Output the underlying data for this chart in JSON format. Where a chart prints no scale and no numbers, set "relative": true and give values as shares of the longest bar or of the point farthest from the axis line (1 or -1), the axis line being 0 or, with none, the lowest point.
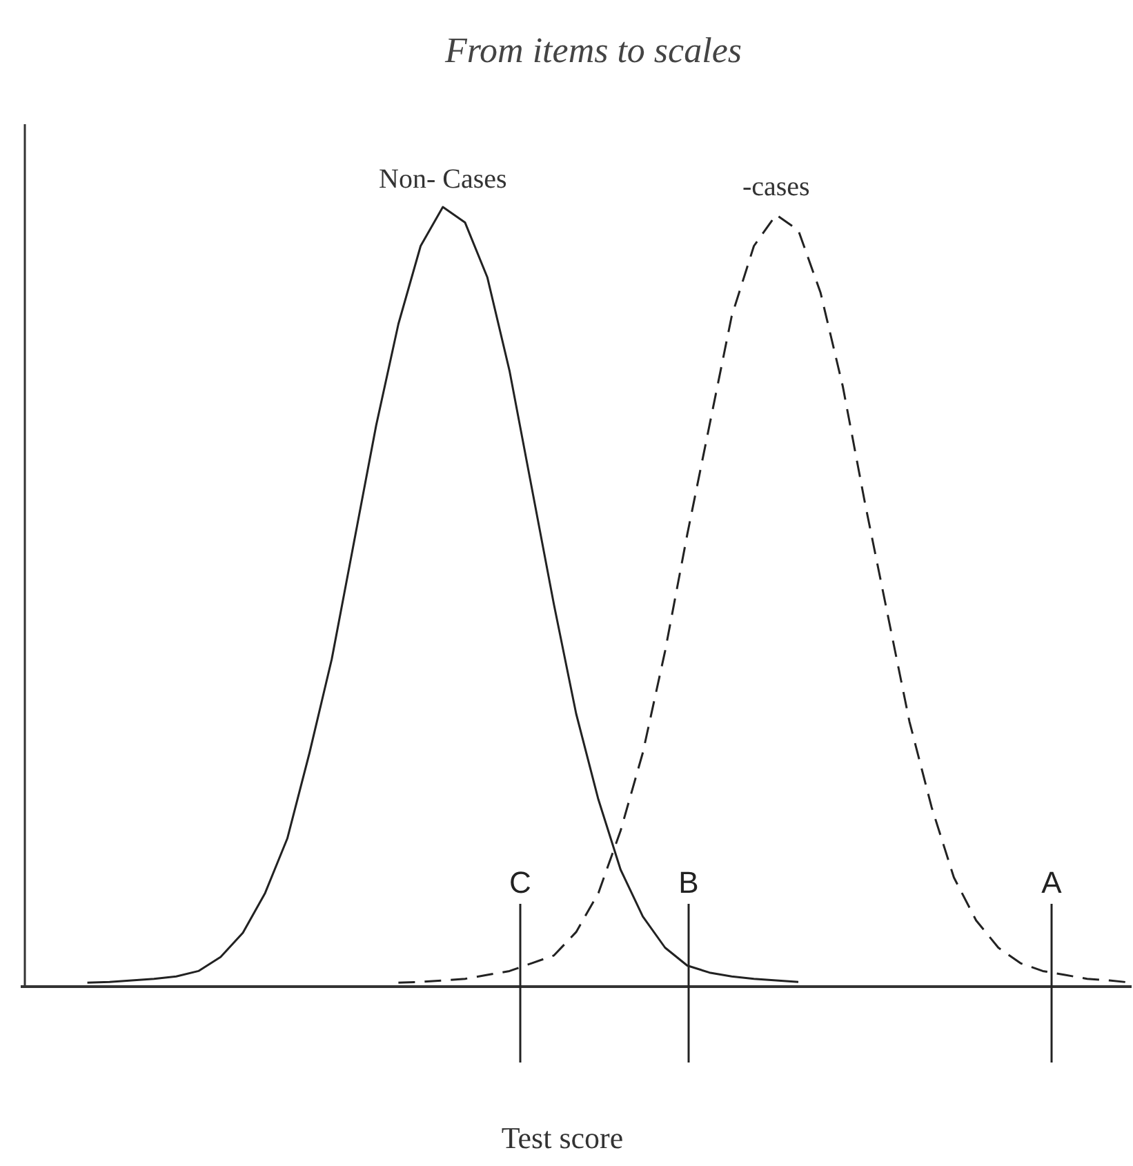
{
  "chart_data": {
    "type": "line",
    "title": "From items to scales",
    "xlabel": "Test score",
    "relative": true,
    "legend": false,
    "marker": "none",
    "categories": [
      null,
      null,
      null,
      null,
      null,
      null,
      null,
      null,
      null,
      null,
      null,
      null,
      null,
      null,
      null,
      null,
      null,
      null,
      null,
      null,
      null,
      null,
      null,
      null,
      null,
      null,
      null,
      null,
      null,
      null,
      null,
      null,
      null,
      null,
      null,
      null,
      null,
      null,
      null,
      null,
      null,
      null,
      null,
      null,
      null,
      null,
      null,
      null,
      null,
      null,
      null
    ],
    "series": [
      {
        "name": "Non- Cases",
        "color": "#222222",
        "line_style": "solid",
        "values": [
          null,
          null,
          null,
          0.005,
          0.006,
          0.008,
          0.01,
          0.013,
          0.02,
          0.038,
          0.069,
          0.12,
          0.19,
          0.3,
          0.42,
          0.57,
          0.72,
          0.85,
          0.95,
          1,
          0.98,
          0.91,
          0.79,
          0.64,
          0.49,
          0.35,
          0.24,
          0.15,
          0.09,
          0.05,
          0.027,
          0.018,
          0.013,
          0.01,
          0.008,
          0.006,
          null,
          null,
          null,
          null,
          null,
          null,
          null,
          null,
          null,
          null,
          null,
          null,
          null,
          null,
          null
        ]
      },
      {
        "name": "-cases",
        "color": "#222222",
        "line_style": "dashed",
        "values": [
          null,
          null,
          null,
          null,
          null,
          null,
          null,
          null,
          null,
          null,
          null,
          null,
          null,
          null,
          null,
          null,
          null,
          0.005,
          0.006,
          0.008,
          0.01,
          0.015,
          0.02,
          0.03,
          0.04,
          0.07,
          0.12,
          0.2,
          0.3,
          0.43,
          0.58,
          0.72,
          0.86,
          0.95,
          0.99,
          0.97,
          0.89,
          0.77,
          0.62,
          0.48,
          0.34,
          0.23,
          0.14,
          0.085,
          0.05,
          0.03,
          0.02,
          0.015,
          0.01,
          0.008,
          0.005
        ]
      }
    ],
    "annotations": [
      "C",
      "B",
      "A"
    ]
  }
}
